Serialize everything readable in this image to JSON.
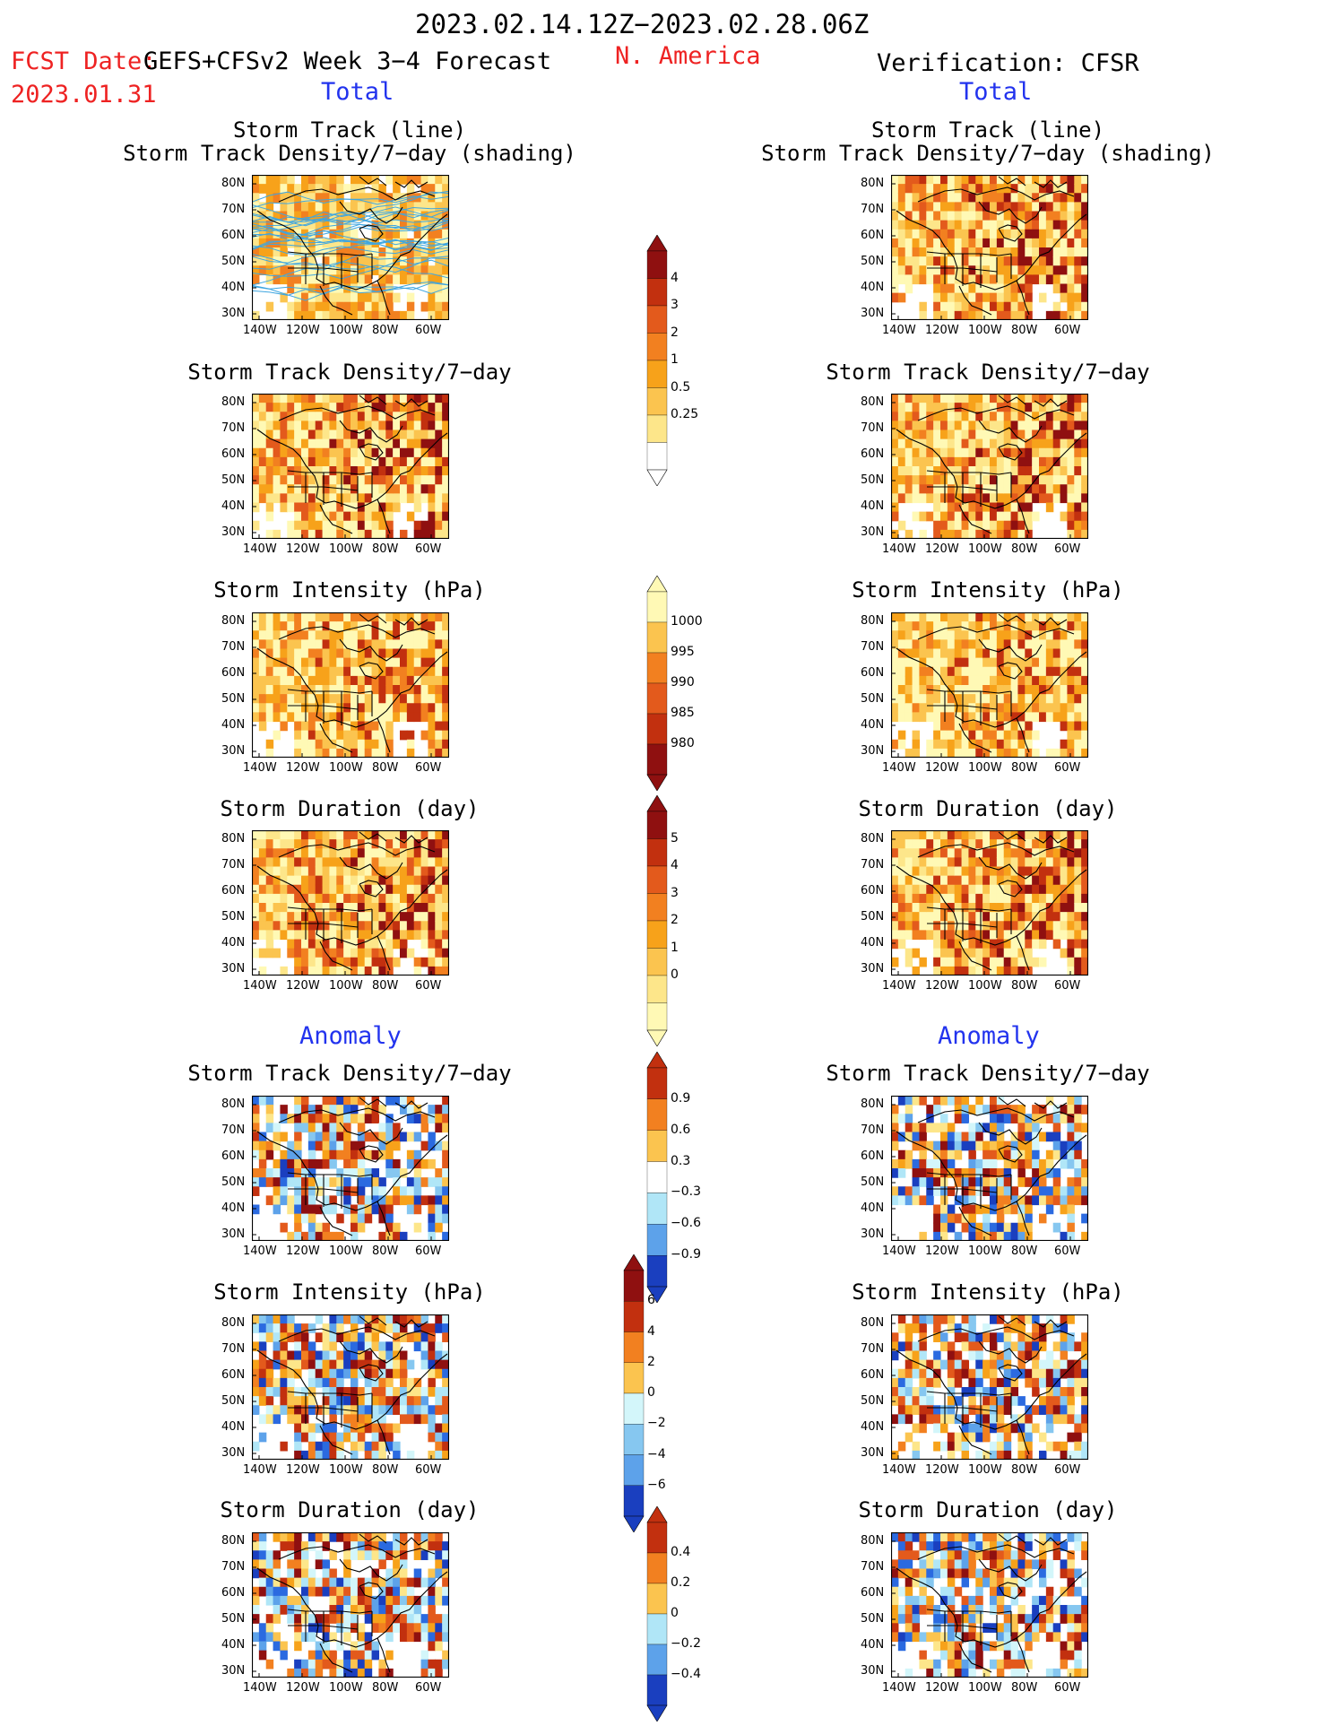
{
  "header": {
    "period": "2023.02.14.12Z−2023.02.28.06Z",
    "fcst_label": "FCST Date:",
    "fcst_date": "2023.01.31",
    "model": "GEFS+CFSv2 Week 3−4 Forecast",
    "region": "N. America",
    "verification": "Verification: CFSR",
    "total_left": "Total",
    "total_right": "Total",
    "anomaly_left": "Anomaly",
    "anomaly_right": "Anomaly"
  },
  "panels": {
    "track_line": "Storm Track (line)",
    "track_shading": "Storm Track Density/7−day (shading)",
    "density": "Storm Track Density/7−day",
    "intensity": "Storm Intensity (hPa)",
    "duration": "Storm Duration (day)"
  },
  "axes": {
    "lat": [
      "80N",
      "70N",
      "60N",
      "50N",
      "40N",
      "30N"
    ],
    "lon": [
      "140W",
      "120W",
      "100W",
      "80W",
      "60W"
    ]
  },
  "colorbars": {
    "density_total": [
      "4",
      "3",
      "2",
      "1",
      "0.5",
      "0.25"
    ],
    "intensity_total": [
      "1000",
      "995",
      "990",
      "985",
      "980"
    ],
    "duration_total": [
      "5",
      "4",
      "3",
      "2",
      "1",
      "0"
    ],
    "density_anom": [
      "0.9",
      "0.6",
      "0.3",
      "−0.3",
      "−0.6",
      "−0.9"
    ],
    "intensity_anom": [
      "6",
      "4",
      "2",
      "0",
      "−2",
      "−4",
      "−6"
    ],
    "duration_anom": [
      "0.4",
      "0.2",
      "0",
      "−0.2",
      "−0.4"
    ]
  },
  "colors": {
    "warm": [
      "#fff9b5",
      "#fde68a",
      "#fbc44f",
      "#f7a21a",
      "#f28020",
      "#e35a1c",
      "#c2300f",
      "#8f1010"
    ],
    "cool": [
      "#d3f6fa",
      "#b0e6f7",
      "#86c7f0",
      "#5da2ea",
      "#2b6ae0",
      "#1a3fbf"
    ],
    "track_line": "#3fa6e0",
    "track_line_obs": "#7070c8"
  }
}
